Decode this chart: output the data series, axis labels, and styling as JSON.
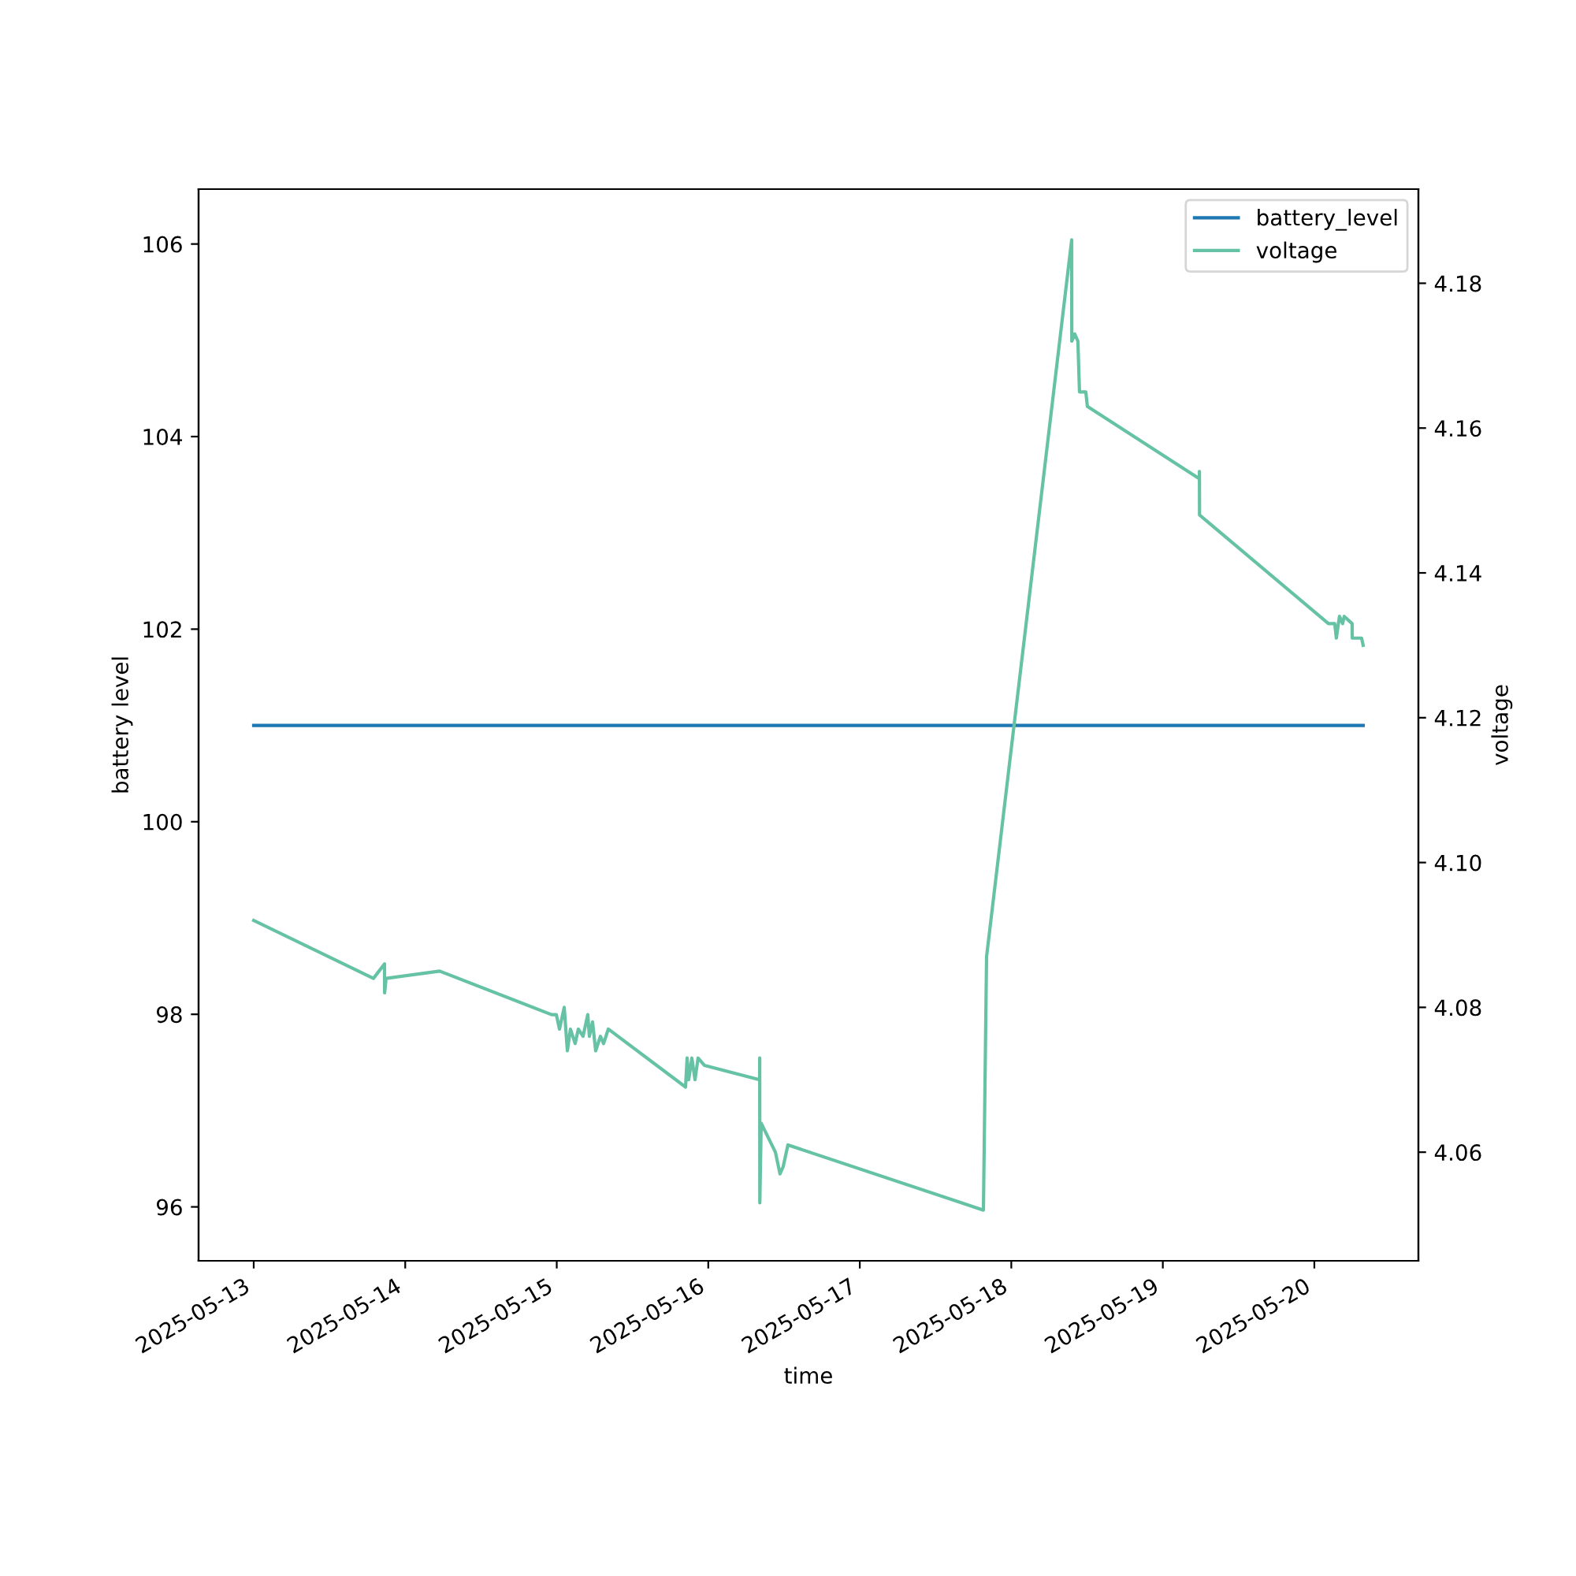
{
  "chart_data": {
    "type": "line",
    "xlabel": "time",
    "ylabel": "battery level",
    "y2label": "voltage",
    "xlim": [
      "2025-05-12T15:16",
      "2025-05-20T16:29"
    ],
    "xticks": [
      "2025-05-13",
      "2025-05-14",
      "2025-05-15",
      "2025-05-16",
      "2025-05-17",
      "2025-05-18",
      "2025-05-19",
      "2025-05-20"
    ],
    "ylim": [
      95.44,
      106.57
    ],
    "yticks": [
      96,
      98,
      100,
      102,
      104,
      106
    ],
    "y2lim": [
      4.045,
      4.193
    ],
    "y2ticks": [
      {
        "value": 4.06,
        "label": "4.06"
      },
      {
        "value": 4.08,
        "label": "4.08"
      },
      {
        "value": 4.1,
        "label": "4.10"
      },
      {
        "value": 4.12,
        "label": "4.12"
      },
      {
        "value": 4.14,
        "label": "4.14"
      },
      {
        "value": 4.16,
        "label": "4.16"
      },
      {
        "value": 4.18,
        "label": "4.18"
      }
    ],
    "legend": "top right",
    "grid": false,
    "series": [
      {
        "name": "battery_level",
        "color": "#1f77b4",
        "x": [
          "2025-05-13T00:00",
          "2025-05-20T07:44"
        ],
        "values": [
          101,
          101
        ]
      },
      {
        "name": "voltage",
        "color": "#66c2a5",
        "axis": "y2",
        "x": [
          "2025-05-13T00:00",
          "2025-05-13T18:58",
          "2025-05-13T20:43",
          "2025-05-13T20:44",
          "2025-05-13T20:58",
          "2025-05-14T05:27",
          "2025-05-14T23:11",
          "2025-05-14T23:56",
          "2025-05-15T00:26",
          "2025-05-15T01:11",
          "2025-05-15T01:41",
          "2025-05-15T02:10",
          "2025-05-15T02:55",
          "2025-05-15T03:25",
          "2025-05-15T04:10",
          "2025-05-15T04:55",
          "2025-05-15T05:10",
          "2025-05-15T05:40",
          "2025-05-15T06:10",
          "2025-05-15T06:55",
          "2025-05-15T07:25",
          "2025-05-15T08:10",
          "2025-05-15T20:24",
          "2025-05-15T20:39",
          "2025-05-15T20:54",
          "2025-05-15T21:24",
          "2025-05-15T21:54",
          "2025-05-15T22:23",
          "2025-05-15T23:23",
          "2025-05-16T08:08",
          "2025-05-16T08:09",
          "2025-05-16T08:10",
          "2025-05-16T08:23",
          "2025-05-16T10:38",
          "2025-05-16T11:22",
          "2025-05-16T11:52",
          "2025-05-16T12:37",
          "2025-05-17T19:35",
          "2025-05-17T20:05",
          "2025-05-18T09:34",
          "2025-05-18T09:35",
          "2025-05-18T10:03",
          "2025-05-18T10:33",
          "2025-05-18T10:48",
          "2025-05-18T11:48",
          "2025-05-18T12:03",
          "2025-05-19T05:47",
          "2025-05-19T05:48",
          "2025-05-19T05:49",
          "2025-05-20T02:14",
          "2025-05-20T03:14",
          "2025-05-20T03:29",
          "2025-05-20T03:59",
          "2025-05-20T04:29",
          "2025-05-20T04:44",
          "2025-05-20T05:59",
          "2025-05-20T06:00",
          "2025-05-20T07:29",
          "2025-05-20T07:44"
        ],
        "values": [
          4.092,
          4.084,
          4.086,
          4.082,
          4.084,
          4.085,
          4.079,
          4.079,
          4.077,
          4.08,
          4.074,
          4.077,
          4.075,
          4.077,
          4.076,
          4.079,
          4.076,
          4.078,
          4.074,
          4.076,
          4.075,
          4.077,
          4.069,
          4.073,
          4.07,
          4.073,
          4.07,
          4.073,
          4.072,
          4.07,
          4.073,
          4.053,
          4.064,
          4.06,
          4.057,
          4.058,
          4.061,
          4.052,
          4.087,
          4.186,
          4.172,
          4.173,
          4.172,
          4.165,
          4.165,
          4.163,
          4.153,
          4.154,
          4.148,
          4.133,
          4.133,
          4.131,
          4.134,
          4.133,
          4.134,
          4.133,
          4.131,
          4.131,
          4.13
        ]
      }
    ]
  }
}
